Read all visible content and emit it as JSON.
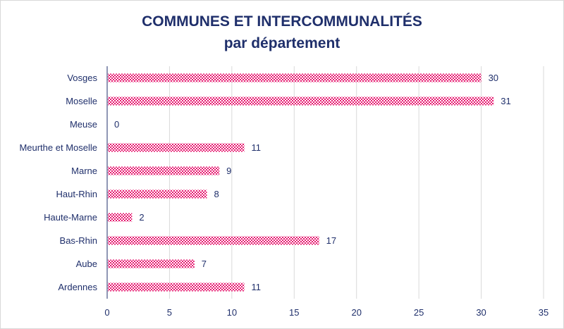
{
  "chart_data": {
    "type": "bar",
    "orientation": "horizontal",
    "title": "COMMUNES ET INTERCOMMUNALITÉS",
    "subtitle": "par département",
    "categories": [
      "Vosges",
      "Moselle",
      "Meuse",
      "Meurthe et Moselle",
      "Marne",
      "Haut-Rhin",
      "Haute-Marne",
      "Bas-Rhin",
      "Aube",
      "Ardennes"
    ],
    "values": [
      30,
      31,
      0,
      11,
      9,
      8,
      2,
      17,
      7,
      11
    ],
    "xlim": [
      0,
      35
    ],
    "xticks": [
      0,
      5,
      10,
      15,
      20,
      25,
      30,
      35
    ],
    "grid": true,
    "data_labels": true,
    "bar_color": "#e5186f",
    "bar_pattern": "checkerboard",
    "text_color": "#1f2f6b"
  }
}
